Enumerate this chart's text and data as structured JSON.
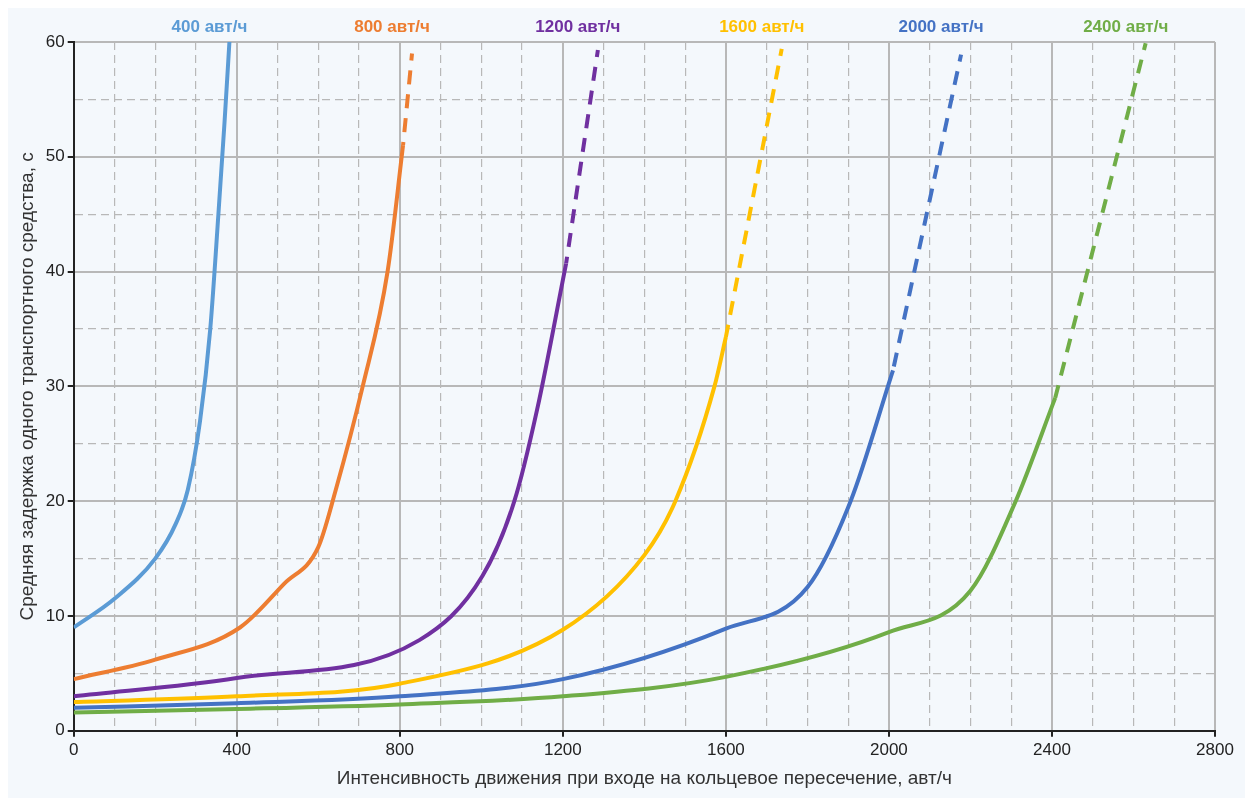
{
  "chart_data": {
    "type": "line",
    "xlabel": "Интенсивность движения при входе на кольцевое пересечение, авт/ч",
    "ylabel": "Средняя задержка одного транспортного средства, с",
    "xlim": [
      0,
      2800
    ],
    "ylim": [
      0,
      60
    ],
    "xticks": [
      0,
      {
        "value": 100,
        "label": null
      },
      {
        "value": 200,
        "label": null
      },
      {
        "value": 300,
        "label": null
      },
      400,
      {
        "value": 500,
        "label": null
      },
      {
        "value": 600,
        "label": null
      },
      {
        "value": 700,
        "label": null
      },
      800,
      {
        "value": 900,
        "label": null
      },
      {
        "value": 1000,
        "label": null
      },
      {
        "value": 1100,
        "label": null
      },
      1200,
      {
        "value": 1300,
        "label": null
      },
      {
        "value": 1400,
        "label": null
      },
      {
        "value": 1500,
        "label": null
      },
      1600,
      {
        "value": 1700,
        "label": null
      },
      {
        "value": 1800,
        "label": null
      },
      {
        "value": 1900,
        "label": null
      },
      2000,
      {
        "value": 2100,
        "label": null
      },
      {
        "value": 2200,
        "label": null
      },
      {
        "value": 2300,
        "label": null
      },
      2400,
      {
        "value": 2500,
        "label": null
      },
      {
        "value": 2600,
        "label": null
      },
      {
        "value": 2700,
        "label": null
      },
      2800
    ],
    "yticks": [
      0,
      {
        "value": 5,
        "label": null
      },
      10,
      {
        "value": 15,
        "label": null
      },
      20,
      {
        "value": 25,
        "label": null
      },
      30,
      {
        "value": 35,
        "label": null
      },
      40,
      {
        "value": 45,
        "label": null
      },
      50,
      {
        "value": 55,
        "label": null
      },
      60
    ],
    "grid": true,
    "legend": false,
    "marker": "none",
    "line_style": "solid",
    "series": [
      {
        "name": "400 авт/ч",
        "color": "#5b9bd5",
        "x": [
          0,
          100,
          200,
          250,
          280,
          310,
          335,
          355,
          370,
          382
        ],
        "values": [
          9,
          11.5,
          15,
          18,
          21,
          27,
          35,
          45,
          53,
          60
        ]
      },
      {
        "name": "800 авт/ч",
        "color": "#ed7d31",
        "x": [
          0,
          200,
          408,
          516,
          600,
          643,
          709,
          770,
          808
        ],
        "values": [
          4.5,
          6.2,
          9,
          12.8,
          16,
          21,
          30,
          40,
          51
        ]
      },
      {
        "color": "#ed7d31",
        "line_style": "dashed",
        "x": [
          808,
          830
        ],
        "values": [
          51,
          59
        ]
      },
      {
        "name": "1200 авт/ч",
        "color": "#7030a0",
        "x": [
          0,
          400,
          848,
          1003,
          1081,
          1137,
          1208
        ],
        "values": [
          3,
          4.6,
          7.9,
          13.5,
          20,
          28,
          40.7
        ]
      },
      {
        "color": "#7030a0",
        "line_style": "dashed",
        "x": [
          1208,
          1286
        ],
        "values": [
          40.7,
          59.3
        ]
      },
      {
        "name": "1600 авт/ч",
        "color": "#ffc000",
        "x": [
          0,
          400,
          800,
          1200,
          1400,
          1476,
          1572,
          1600
        ],
        "values": [
          2.5,
          3,
          4.1,
          8.8,
          15.3,
          20,
          30,
          34.3
        ]
      },
      {
        "color": "#ffc000",
        "line_style": "dashed",
        "x": [
          1600,
          1737
        ],
        "values": [
          34.3,
          59.4
        ]
      },
      {
        "name": "2000 авт/ч",
        "color": "#4472c4",
        "x": [
          0,
          400,
          800,
          1200,
          1600,
          1800,
          1906,
          2010
        ],
        "values": [
          2,
          2.4,
          3,
          4.5,
          8.9,
          12.5,
          20,
          31.4
        ]
      },
      {
        "color": "#4472c4",
        "line_style": "dashed",
        "x": [
          2010,
          2177
        ],
        "values": [
          31.4,
          58.9
        ]
      },
      {
        "name": "2400 авт/ч",
        "color": "#70ad47",
        "x": [
          0,
          400,
          800,
          1200,
          1600,
          2000,
          2200,
          2311,
          2408
        ],
        "values": [
          1.6,
          1.9,
          2.3,
          3,
          4.7,
          8.6,
          12.2,
          20,
          29
        ]
      },
      {
        "color": "#70ad47",
        "line_style": "dashed",
        "x": [
          2408,
          2630
        ],
        "values": [
          29,
          59.9
        ]
      }
    ]
  }
}
